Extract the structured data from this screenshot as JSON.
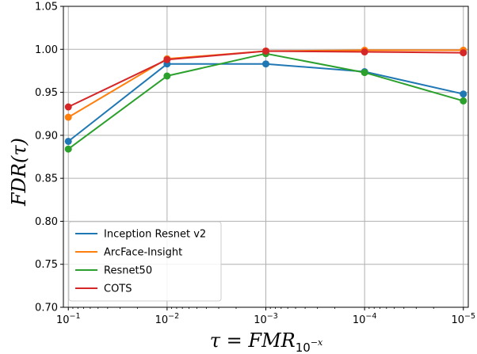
{
  "chart_data": {
    "type": "line",
    "x_tick_labels": [
      {
        "base": "10",
        "exp": "−1"
      },
      {
        "base": "10",
        "exp": "−2"
      },
      {
        "base": "10",
        "exp": "−3"
      },
      {
        "base": "10",
        "exp": "−4"
      },
      {
        "base": "10",
        "exp": "−5"
      }
    ],
    "x": [
      0.1,
      0.01,
      0.001,
      0.0001,
      1e-05
    ],
    "x_scale": "log",
    "x_direction": "decreasing",
    "xlabel": {
      "text": "τ = FMR",
      "sub": "10",
      "sup": "−x"
    },
    "ylabel": "FDR(τ)",
    "ylim": [
      0.7,
      1.05
    ],
    "y_ticks": [
      "0.70",
      "0.75",
      "0.80",
      "0.85",
      "0.90",
      "0.95",
      "1.00",
      "1.05"
    ],
    "grid": true,
    "legend_position": "lower-left",
    "series": [
      {
        "name": "Inception Resnet v2",
        "color": "#1f77b4",
        "values": [
          0.893,
          0.983,
          0.983,
          0.974,
          0.948
        ]
      },
      {
        "name": "ArcFace-Insight",
        "color": "#ff7f0e",
        "values": [
          0.921,
          0.989,
          0.998,
          0.999,
          0.999
        ]
      },
      {
        "name": "Resnet50",
        "color": "#2ca02c",
        "values": [
          0.884,
          0.969,
          0.995,
          0.973,
          0.94
        ]
      },
      {
        "name": "COTS",
        "color": "#d62728",
        "values": [
          0.933,
          0.988,
          0.998,
          0.997,
          0.996
        ]
      }
    ]
  }
}
